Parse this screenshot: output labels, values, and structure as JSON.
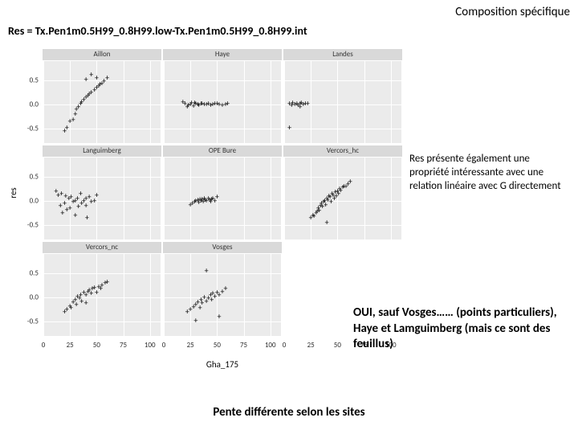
{
  "header_right": "Composition spécifique",
  "formula": "Res = Tx.Pen1m0.5H99_0.8H99.low-Tx.Pen1m0.5H99_0.8H99.int",
  "annotation1": "Res présente également une propriété intéressante avec une relation linéaire avec G directement",
  "annotation2": "OUI, sauf Vosges…… (points particuliers), Haye et Lamguimberg (mais ce sont des feuillus)",
  "footer": "Pente différente selon les sites",
  "axes": {
    "y_label": "res",
    "x_label": "Gha_175",
    "y_ticks": [
      -0.5,
      0.0,
      0.5
    ],
    "x_ticks": [
      0,
      25,
      50,
      75,
      100
    ],
    "xlim": [
      0,
      110
    ],
    "ylim": [
      -0.8,
      0.9
    ]
  },
  "style": {
    "panel_bg": "#ebebeb",
    "strip_bg": "#d9d9d9",
    "grid_color": "#ffffff",
    "point_color": "#000000",
    "point_marker": "+",
    "point_size": 10
  },
  "panels": [
    {
      "title": "Aillon",
      "row": 0,
      "col": 0,
      "blank": false,
      "points": [
        [
          20,
          -0.55
        ],
        [
          22,
          -0.48
        ],
        [
          25,
          -0.35
        ],
        [
          28,
          -0.32
        ],
        [
          30,
          -0.2
        ],
        [
          31,
          -0.1
        ],
        [
          33,
          -0.05
        ],
        [
          35,
          0.02
        ],
        [
          36,
          0.05
        ],
        [
          38,
          0.1
        ],
        [
          40,
          0.15
        ],
        [
          40,
          0.52
        ],
        [
          42,
          0.18
        ],
        [
          43,
          0.21
        ],
        [
          45,
          0.25
        ],
        [
          45,
          0.62
        ],
        [
          48,
          0.3
        ],
        [
          50,
          0.35
        ],
        [
          50,
          0.55
        ],
        [
          52,
          0.38
        ],
        [
          53,
          0.42
        ],
        [
          55,
          0.44
        ],
        [
          57,
          0.48
        ],
        [
          60,
          0.55
        ]
      ]
    },
    {
      "title": "Haye",
      "row": 0,
      "col": 1,
      "blank": false,
      "points": [
        [
          18,
          0.05
        ],
        [
          20,
          0.02
        ],
        [
          22,
          -0.05
        ],
        [
          23,
          -0.02
        ],
        [
          25,
          0.0
        ],
        [
          26,
          0.03
        ],
        [
          28,
          -0.03
        ],
        [
          29,
          0.04
        ],
        [
          30,
          0.02
        ],
        [
          32,
          0.0
        ],
        [
          33,
          -0.02
        ],
        [
          35,
          0.02
        ],
        [
          36,
          0.01
        ],
        [
          38,
          0.0
        ],
        [
          40,
          0.0
        ],
        [
          42,
          0.02
        ],
        [
          44,
          -0.01
        ],
        [
          46,
          0.0
        ],
        [
          48,
          0.02
        ],
        [
          50,
          0.01
        ],
        [
          52,
          0.0
        ],
        [
          55,
          -0.01
        ],
        [
          58,
          0.0
        ],
        [
          60,
          0.02
        ]
      ]
    },
    {
      "title": "Landes",
      "row": 0,
      "col": 2,
      "blank": false,
      "points": [
        [
          5,
          0.02
        ],
        [
          7,
          -0.01
        ],
        [
          8,
          0.03
        ],
        [
          10,
          0.0
        ],
        [
          12,
          0.02
        ],
        [
          13,
          -0.02
        ],
        [
          15,
          0.01
        ],
        [
          15,
          -0.05
        ],
        [
          16,
          0.03
        ],
        [
          18,
          0.0
        ],
        [
          5,
          -0.48
        ],
        [
          20,
          0.02
        ],
        [
          22,
          0.01
        ]
      ]
    },
    {
      "title": "Languimberg",
      "row": 1,
      "col": 0,
      "blank": false,
      "points": [
        [
          12,
          0.2
        ],
        [
          14,
          0.12
        ],
        [
          16,
          -0.1
        ],
        [
          17,
          0.15
        ],
        [
          18,
          -0.25
        ],
        [
          20,
          -0.05
        ],
        [
          21,
          0.1
        ],
        [
          22,
          -0.18
        ],
        [
          24,
          0.05
        ],
        [
          25,
          -0.15
        ],
        [
          26,
          0.08
        ],
        [
          28,
          -0.02
        ],
        [
          30,
          -0.3
        ],
        [
          30,
          0.0
        ],
        [
          32,
          0.05
        ],
        [
          33,
          -0.12
        ],
        [
          35,
          0.15
        ],
        [
          36,
          -0.05
        ],
        [
          38,
          0.0
        ],
        [
          40,
          0.05
        ],
        [
          40,
          -0.1
        ],
        [
          41,
          -0.35
        ],
        [
          43,
          0.08
        ],
        [
          45,
          -0.02
        ],
        [
          48,
          0.0
        ],
        [
          50,
          0.12
        ]
      ]
    },
    {
      "title": "OPE Bure",
      "row": 1,
      "col": 1,
      "blank": false,
      "points": [
        [
          25,
          -0.08
        ],
        [
          27,
          -0.05
        ],
        [
          29,
          -0.02
        ],
        [
          30,
          0.0
        ],
        [
          32,
          0.02
        ],
        [
          33,
          -0.03
        ],
        [
          34,
          0.03
        ],
        [
          35,
          0.0
        ],
        [
          36,
          0.04
        ],
        [
          37,
          -0.01
        ],
        [
          38,
          0.05
        ],
        [
          39,
          0.02
        ],
        [
          40,
          0.0
        ],
        [
          42,
          0.05
        ],
        [
          43,
          0.02
        ],
        [
          44,
          -0.02
        ],
        [
          45,
          0.03
        ],
        [
          46,
          0.05
        ],
        [
          48,
          0.0
        ],
        [
          50,
          0.08
        ]
      ]
    },
    {
      "title": "Vercors_hc",
      "row": 1,
      "col": 2,
      "blank": false,
      "points": [
        [
          25,
          -0.35
        ],
        [
          27,
          -0.3
        ],
        [
          28,
          -0.32
        ],
        [
          30,
          -0.25
        ],
        [
          31,
          -0.22
        ],
        [
          32,
          -0.15
        ],
        [
          33,
          -0.2
        ],
        [
          34,
          -0.1
        ],
        [
          35,
          -0.05
        ],
        [
          36,
          -0.12
        ],
        [
          37,
          -0.02
        ],
        [
          38,
          0.0
        ],
        [
          39,
          -0.08
        ],
        [
          40,
          0.05
        ],
        [
          40,
          -0.45
        ],
        [
          41,
          0.02
        ],
        [
          42,
          0.1
        ],
        [
          43,
          0.08
        ],
        [
          44,
          -0.02
        ],
        [
          45,
          0.15
        ],
        [
          46,
          0.12
        ],
        [
          47,
          0.05
        ],
        [
          48,
          0.18
        ],
        [
          49,
          0.1
        ],
        [
          50,
          0.2
        ],
        [
          51,
          0.15
        ],
        [
          52,
          0.25
        ],
        [
          53,
          0.22
        ],
        [
          55,
          0.28
        ],
        [
          56,
          0.3
        ],
        [
          58,
          0.3
        ],
        [
          60,
          0.35
        ],
        [
          62,
          0.4
        ]
      ]
    },
    {
      "title": "Vercors_nc",
      "row": 2,
      "col": 0,
      "blank": false,
      "points": [
        [
          20,
          -0.3
        ],
        [
          22,
          -0.25
        ],
        [
          25,
          -0.18
        ],
        [
          26,
          -0.22
        ],
        [
          28,
          -0.1
        ],
        [
          30,
          -0.05
        ],
        [
          31,
          -0.15
        ],
        [
          32,
          0.02
        ],
        [
          34,
          -0.02
        ],
        [
          35,
          0.05
        ],
        [
          36,
          -0.08
        ],
        [
          38,
          0.1
        ],
        [
          40,
          0.05
        ],
        [
          40,
          -0.12
        ],
        [
          42,
          0.12
        ],
        [
          43,
          0.15
        ],
        [
          45,
          0.08
        ],
        [
          46,
          0.18
        ],
        [
          48,
          0.2
        ],
        [
          50,
          0.1
        ],
        [
          52,
          0.22
        ],
        [
          54,
          0.18
        ],
        [
          55,
          0.25
        ],
        [
          58,
          0.3
        ],
        [
          60,
          0.32
        ]
      ]
    },
    {
      "title": "Vosges",
      "row": 2,
      "col": 1,
      "blank": false,
      "points": [
        [
          22,
          -0.3
        ],
        [
          25,
          -0.25
        ],
        [
          28,
          -0.2
        ],
        [
          30,
          -0.48
        ],
        [
          30,
          -0.15
        ],
        [
          32,
          -0.1
        ],
        [
          34,
          -0.22
        ],
        [
          35,
          -0.05
        ],
        [
          36,
          -0.12
        ],
        [
          38,
          0.0
        ],
        [
          40,
          -0.08
        ],
        [
          40,
          0.55
        ],
        [
          42,
          -0.02
        ],
        [
          44,
          0.05
        ],
        [
          45,
          -0.05
        ],
        [
          46,
          0.08
        ],
        [
          48,
          0.02
        ],
        [
          50,
          0.1
        ],
        [
          52,
          -0.4
        ],
        [
          52,
          0.05
        ],
        [
          55,
          0.12
        ],
        [
          58,
          0.18
        ]
      ]
    },
    {
      "title": "",
      "row": 2,
      "col": 2,
      "blank": true,
      "points": []
    }
  ]
}
